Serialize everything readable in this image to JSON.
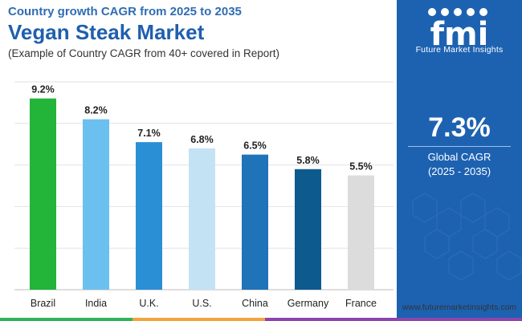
{
  "header": {
    "kicker": "Country growth CAGR from 2025 to 2035",
    "title": "Vegan Steak Market",
    "subtitle": "(Example of Country CAGR from 40+ covered in Report)"
  },
  "side_panel": {
    "brand_name": "Future Market Insights",
    "logo_text": "fmi",
    "kpi_value": "7.3%",
    "kpi_label": "Global CAGR",
    "kpi_period": "(2025 - 2035)",
    "background_color": "#1d62b1"
  },
  "footer": {
    "website": "www.futuremarketinsights.com",
    "stripe_colors": [
      "#2fb35a",
      "#f2a33a",
      "#8e44ad"
    ]
  },
  "chart_data": {
    "type": "bar",
    "categories": [
      "Brazil",
      "India",
      "U.K.",
      "U.S.",
      "China",
      "Germany",
      "France"
    ],
    "values": [
      9.2,
      8.2,
      7.1,
      6.8,
      6.5,
      5.8,
      5.5
    ],
    "data_labels": [
      "9.2%",
      "8.2%",
      "7.1%",
      "6.8%",
      "6.5%",
      "5.8%",
      "5.5%"
    ],
    "bar_colors": [
      "#22b53a",
      "#6cc0ef",
      "#2b8fd6",
      "#c3e2f4",
      "#1f73b8",
      "#0d5a8f",
      "#dcdcdc"
    ],
    "ylim": [
      0,
      10
    ],
    "grid": true,
    "title": "",
    "xlabel": "",
    "ylabel": ""
  }
}
